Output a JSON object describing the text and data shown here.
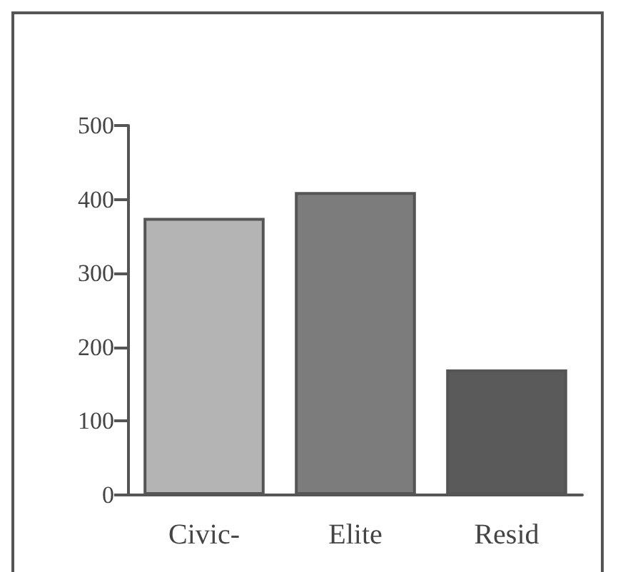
{
  "chart_data": {
    "type": "bar",
    "categories": [
      "Civic-",
      "Elite",
      "Resid"
    ],
    "values": [
      375,
      410,
      170
    ],
    "colors": [
      "#b4b4b4",
      "#7c7c7c",
      "#5a5a5a"
    ],
    "ylim": [
      0,
      500
    ],
    "yticks": [
      0,
      100,
      200,
      300,
      400,
      500
    ],
    "grid": false
  }
}
